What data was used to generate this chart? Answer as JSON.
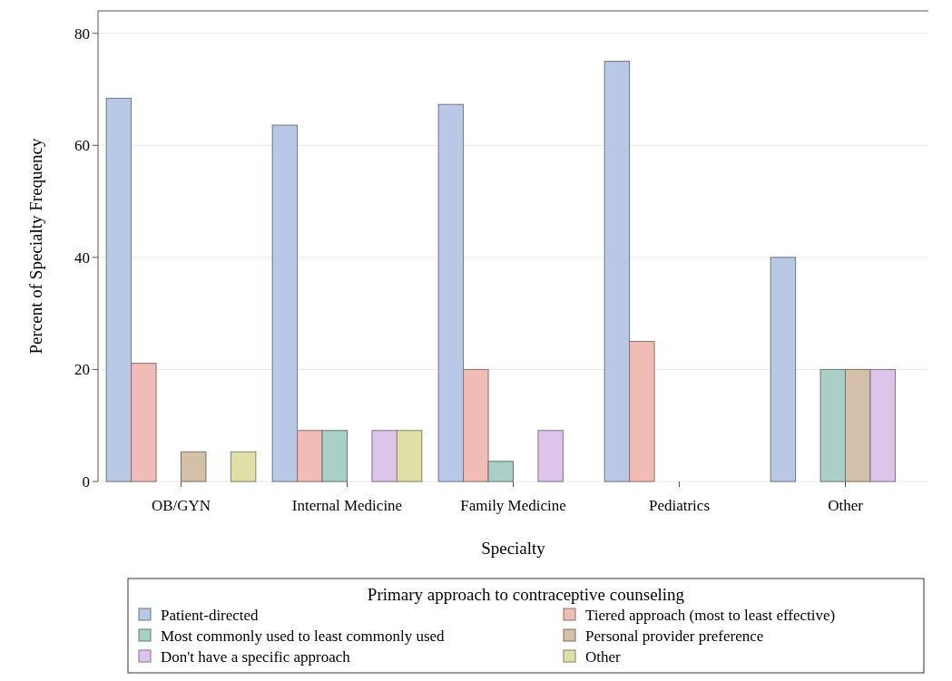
{
  "chart_data": {
    "type": "bar",
    "xlabel": "Specialty",
    "ylabel": "Percent of Specialty Frequency",
    "legend_title": "Primary approach to contraceptive counseling",
    "categories": [
      "OB/GYN",
      "Internal Medicine",
      "Family Medicine",
      "Pediatrics",
      "Other"
    ],
    "series": [
      {
        "name": "Patient-directed",
        "color": "#b9c8e4",
        "values": [
          68.4,
          63.6,
          67.3,
          75,
          40
        ]
      },
      {
        "name": "Tiered approach (most to least effective)",
        "color": "#f0bcb5",
        "values": [
          21.1,
          9.1,
          20,
          25,
          0
        ]
      },
      {
        "name": "Most commonly used to least commonly used",
        "color": "#a9cfc7",
        "values": [
          0,
          9.1,
          3.6,
          0,
          20
        ]
      },
      {
        "name": "Personal provider preference",
        "color": "#d4bfa8",
        "values": [
          5.3,
          0,
          0,
          0,
          20
        ]
      },
      {
        "name": "Don't have a specific approach",
        "color": "#dcc4ea",
        "values": [
          0,
          9.1,
          9.1,
          0,
          20
        ]
      },
      {
        "name": "Other",
        "color": "#dfe0a8",
        "values": [
          5.3,
          9.1,
          0,
          0,
          0
        ]
      }
    ],
    "ylim": [
      0,
      84
    ],
    "yticks": [
      0,
      20,
      40,
      60,
      80
    ],
    "grid": "y",
    "legend": "bottom"
  }
}
